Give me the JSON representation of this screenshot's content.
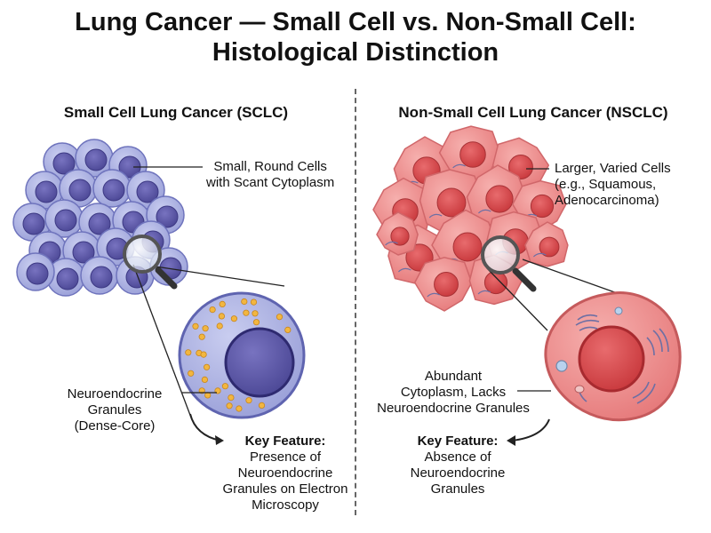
{
  "title": {
    "line1": "Lung Cancer — Small Cell vs. Non-Small Cell:",
    "line2": "Histological Distinction"
  },
  "sclc": {
    "heading": "Small Cell Lung Cancer (SCLC)",
    "cells_label": [
      "Small, Round Cells",
      "with Scant Cytoplasm"
    ],
    "granules_label": [
      "Neuroendocrine",
      "Granules",
      "(Dense-Core)"
    ],
    "key_feature_title": "Key Feature:",
    "key_feature_text": [
      "Presence of",
      "Neuroendocrine",
      "Granules on Electron",
      "Microscopy"
    ]
  },
  "nsclc": {
    "heading": "Non-Small Cell Lung Cancer (NSCLC)",
    "cells_label": [
      "Larger, Varied Cells",
      "(e.g., Squamous,",
      "Adenocarcinoma)"
    ],
    "cytoplasm_label": [
      "Abundant",
      "Cytoplasm, Lacks",
      "Neuroendocrine Granules"
    ],
    "key_feature_title": "Key Feature:",
    "key_feature_text": [
      "Absence of",
      "Neuroendocrine",
      "Granules"
    ]
  },
  "colors": {
    "sclc_cell": "#a9aee0",
    "sclc_nucleus": "#5b57a8",
    "granule": "#f2b640",
    "nsclc_cell": "#ef8f8f",
    "nsclc_nucleus": "#d9464a"
  }
}
